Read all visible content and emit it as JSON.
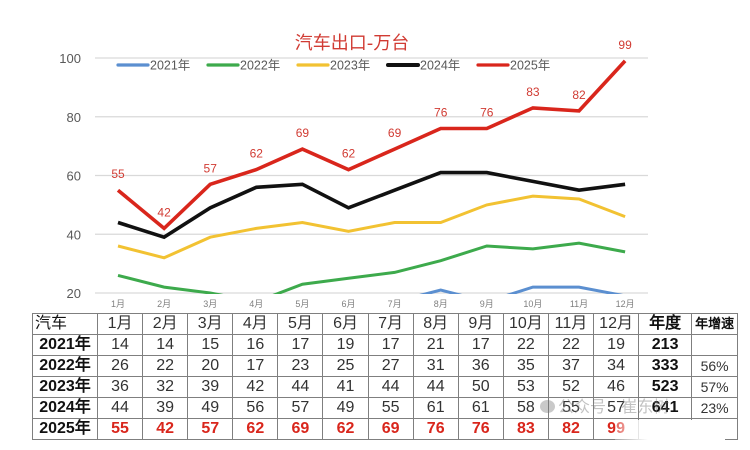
{
  "chart_data": {
    "type": "line",
    "title": "汽车出口-万台",
    "xlabel": "",
    "ylabel": "",
    "categories": [
      "1月",
      "2月",
      "3月",
      "4月",
      "5月",
      "6月",
      "7月",
      "8月",
      "9月",
      "10月",
      "11月",
      "12月"
    ],
    "ylim": [
      20,
      100
    ],
    "yticks": [
      20,
      40,
      60,
      80,
      100
    ],
    "grid": true,
    "legend_position": "top",
    "series": [
      {
        "name": "2021年",
        "color": "#5b8fd0",
        "values": [
          14,
          14,
          15,
          16,
          17,
          19,
          17,
          21,
          17,
          22,
          22,
          19
        ],
        "data_labels": false
      },
      {
        "name": "2022年",
        "color": "#3daa4c",
        "values": [
          26,
          22,
          20,
          17,
          23,
          25,
          27,
          31,
          36,
          35,
          37,
          34
        ],
        "data_labels": false
      },
      {
        "name": "2023年",
        "color": "#f2c232",
        "values": [
          36,
          32,
          39,
          42,
          44,
          41,
          44,
          44,
          50,
          53,
          52,
          46
        ],
        "data_labels": false
      },
      {
        "name": "2024年",
        "color": "#111111",
        "values": [
          44,
          39,
          49,
          56,
          57,
          49,
          55,
          61,
          61,
          58,
          55,
          57
        ],
        "data_labels": false
      },
      {
        "name": "2025年",
        "color": "#d9261c",
        "values": [
          55,
          42,
          57,
          62,
          69,
          62,
          69,
          76,
          76,
          83,
          82,
          99
        ],
        "data_labels": true
      }
    ]
  },
  "table": {
    "corner": "汽车",
    "months": [
      "1月",
      "2月",
      "3月",
      "4月",
      "5月",
      "6月",
      "7月",
      "8月",
      "9月",
      "10月",
      "11月",
      "12月"
    ],
    "total_header": "年度",
    "growth_header": "年增速",
    "rows": [
      {
        "year": "2021年",
        "values": [
          "14",
          "14",
          "15",
          "16",
          "17",
          "19",
          "17",
          "21",
          "17",
          "22",
          "22",
          "19"
        ],
        "total": "213",
        "growth": ""
      },
      {
        "year": "2022年",
        "values": [
          "26",
          "22",
          "20",
          "17",
          "23",
          "25",
          "27",
          "31",
          "36",
          "35",
          "37",
          "34"
        ],
        "total": "333",
        "growth": "56%"
      },
      {
        "year": "2023年",
        "values": [
          "36",
          "32",
          "39",
          "42",
          "44",
          "41",
          "44",
          "44",
          "50",
          "53",
          "52",
          "46"
        ],
        "total": "523",
        "growth": "57%"
      },
      {
        "year": "2024年",
        "values": [
          "44",
          "39",
          "49",
          "56",
          "57",
          "49",
          "55",
          "61",
          "61",
          "58",
          "55",
          "57"
        ],
        "total": "641",
        "growth": "23%"
      },
      {
        "year": "2025年",
        "values": [
          "55",
          "42",
          "57",
          "62",
          "69",
          "62",
          "69",
          "76",
          "76",
          "83",
          "82",
          "99"
        ],
        "total": "",
        "growth": ""
      }
    ]
  },
  "watermark": "公众号 · 崔东树"
}
